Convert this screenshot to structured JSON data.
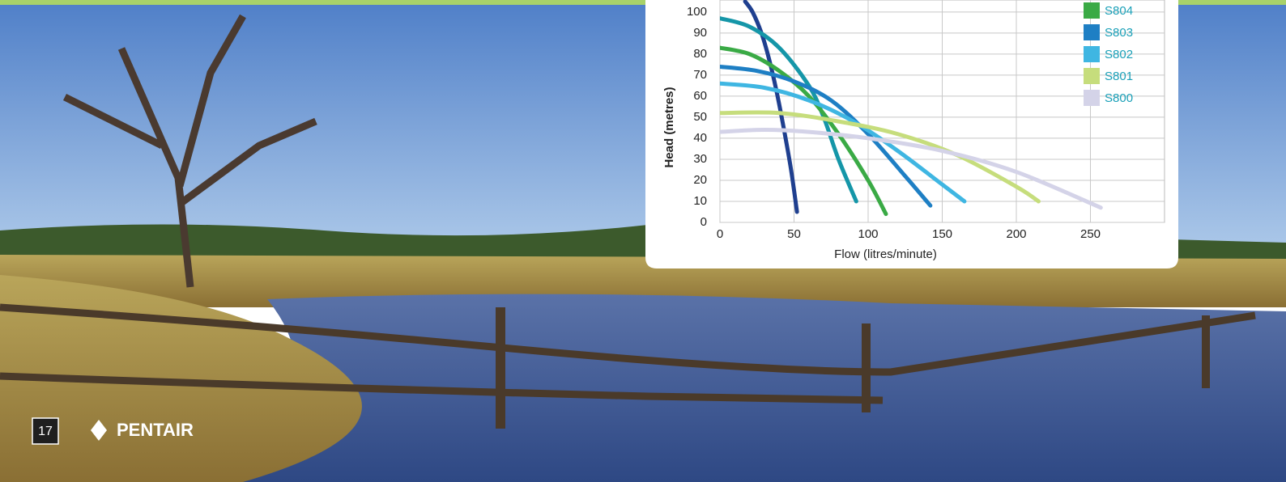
{
  "chart_data": {
    "type": "line",
    "xlabel": "Flow (litres/minute)",
    "ylabel": "Head (metres)",
    "xlim": [
      0,
      300
    ],
    "xticks": [
      0,
      50,
      100,
      150,
      200,
      250
    ],
    "ylim": [
      0,
      105.7
    ],
    "yticks": [
      0,
      10,
      20,
      30,
      40,
      50,
      60,
      70,
      80,
      90,
      100
    ],
    "grid": true,
    "legend": "upper right",
    "series": [
      {
        "color": "#1f3f8f",
        "x": [
          17,
          22,
          28,
          33,
          38,
          43,
          48,
          52
        ],
        "values": [
          105,
          100,
          90,
          78,
          63,
          45,
          25,
          5
        ]
      },
      {
        "color": "#1596a8",
        "x": [
          0,
          20,
          40,
          60,
          70,
          80,
          92
        ],
        "values": [
          97,
          93,
          83,
          65,
          50,
          30,
          10
        ]
      },
      {
        "name": "S804",
        "color": "#3aaa45",
        "x": [
          0,
          20,
          40,
          60,
          80,
          100,
          112
        ],
        "values": [
          83,
          80,
          72,
          60,
          42,
          20,
          4
        ]
      },
      {
        "name": "S803",
        "color": "#1e7fc4",
        "x": [
          0,
          25,
          50,
          75,
          100,
          125,
          142
        ],
        "values": [
          74,
          72,
          67,
          58,
          42,
          22,
          8
        ]
      },
      {
        "name": "S802",
        "color": "#3fb6e2",
        "x": [
          0,
          30,
          60,
          90,
          120,
          150,
          165
        ],
        "values": [
          66,
          64,
          58,
          48,
          34,
          18,
          10
        ]
      },
      {
        "name": "S801",
        "color": "#c6dd7c",
        "x": [
          0,
          40,
          80,
          120,
          160,
          200,
          215
        ],
        "values": [
          52,
          52,
          48,
          42,
          32,
          17,
          10
        ]
      },
      {
        "name": "S800",
        "color": "#d4d3e8",
        "x": [
          0,
          30,
          60,
          100,
          150,
          200,
          257
        ],
        "values": [
          43,
          44,
          43,
          40,
          34,
          24,
          7
        ]
      }
    ]
  },
  "page_number": "17",
  "brand": "PENTAIR"
}
